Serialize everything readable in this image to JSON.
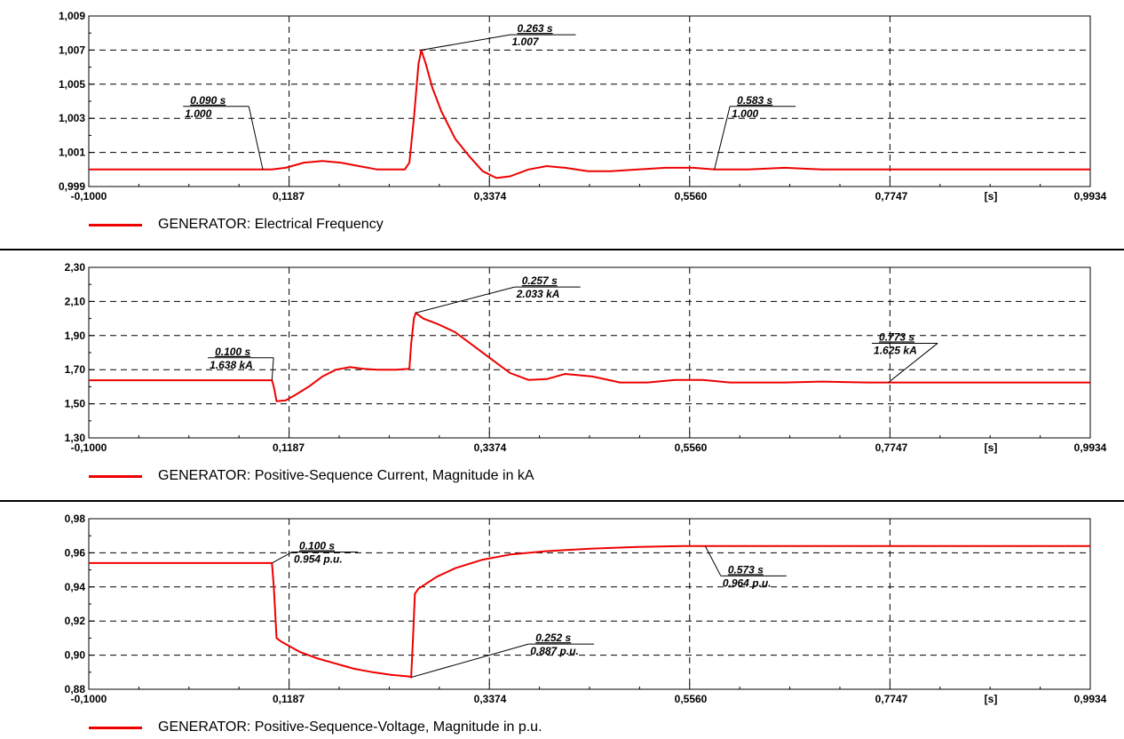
{
  "chart_data": [
    {
      "type": "line",
      "title": "",
      "xlabel": "",
      "ylabel": "",
      "xlim": [
        -0.1,
        0.9934
      ],
      "x_ticks": [
        "-0,1000",
        "0,1187",
        "0,3374",
        "0,5560",
        "0,7747",
        "[s]",
        "0,9934"
      ],
      "ylim": [
        0.999,
        1.009
      ],
      "y_ticks": [
        "1,009",
        "1,007",
        "1,005",
        "1,003",
        "1,001",
        "0,999"
      ],
      "grid": true,
      "legend": "bottom-left",
      "color": "#ee0000",
      "series": [
        {
          "name": "GENERATOR: Electrical Frequency",
          "x": [
            -0.1,
            0.1,
            0.115,
            0.135,
            0.155,
            0.175,
            0.195,
            0.215,
            0.235,
            0.245,
            0.25,
            0.255,
            0.26,
            0.263,
            0.268,
            0.275,
            0.285,
            0.3,
            0.315,
            0.33,
            0.345,
            0.36,
            0.38,
            0.4,
            0.42,
            0.445,
            0.47,
            0.5,
            0.53,
            0.56,
            0.583,
            0.62,
            0.66,
            0.7,
            0.75,
            0.8,
            0.9,
            0.9934
          ],
          "y": [
            1.0,
            1.0,
            1.0001,
            1.0004,
            1.0005,
            1.0004,
            1.0002,
            1.0,
            1.0,
            1.0,
            1.0004,
            1.003,
            1.0062,
            1.007,
            1.0062,
            1.0048,
            1.0034,
            1.0018,
            1.0008,
            0.9999,
            0.9995,
            0.9996,
            1.0,
            1.0002,
            1.0001,
            0.9999,
            0.9999,
            1.0,
            1.0001,
            1.0001,
            1.0,
            1.0,
            1.0001,
            1.0,
            1.0,
            1.0,
            1.0,
            1.0
          ]
        }
      ],
      "annotations": [
        {
          "time": "0.090 s",
          "value": "1.000",
          "x": 0.09,
          "y": 1.0,
          "label_x": 0.003,
          "label_y": 1.0037,
          "side": "left"
        },
        {
          "time": "0.263 s",
          "value": "1.007",
          "x": 0.263,
          "y": 1.007,
          "label_x": 0.36,
          "label_y": 1.0079,
          "side": "right"
        },
        {
          "time": "0.583 s",
          "value": "1.000",
          "x": 0.583,
          "y": 1.0,
          "label_x": 0.6,
          "label_y": 1.0037,
          "side": "right"
        }
      ]
    },
    {
      "type": "line",
      "title": "",
      "xlabel": "",
      "ylabel": "",
      "xlim": [
        -0.1,
        0.9934
      ],
      "x_ticks": [
        "-0,1000",
        "0,1187",
        "0,3374",
        "0,5560",
        "0,7747",
        "[s]",
        "0,9934"
      ],
      "ylim": [
        1.3,
        2.3
      ],
      "y_ticks": [
        "2,30",
        "2,10",
        "1,90",
        "1,70",
        "1,50",
        "1,30"
      ],
      "grid": true,
      "legend": "bottom-left",
      "color": "#ee0000",
      "series": [
        {
          "name": "GENERATOR: Positive-Sequence Current, Magnitude in kA",
          "x": [
            -0.1,
            0.1,
            0.102,
            0.105,
            0.115,
            0.125,
            0.14,
            0.155,
            0.17,
            0.185,
            0.2,
            0.215,
            0.235,
            0.25,
            0.252,
            0.255,
            0.257,
            0.265,
            0.28,
            0.3,
            0.32,
            0.34,
            0.36,
            0.38,
            0.4,
            0.42,
            0.45,
            0.48,
            0.51,
            0.54,
            0.57,
            0.6,
            0.63,
            0.66,
            0.7,
            0.75,
            0.773,
            0.8,
            0.9,
            0.9934
          ],
          "y": [
            1.638,
            1.638,
            1.6,
            1.515,
            1.52,
            1.55,
            1.6,
            1.66,
            1.7,
            1.715,
            1.705,
            1.7,
            1.7,
            1.705,
            1.85,
            2.0,
            2.033,
            2.0,
            1.97,
            1.92,
            1.84,
            1.76,
            1.68,
            1.64,
            1.645,
            1.675,
            1.66,
            1.625,
            1.625,
            1.64,
            1.64,
            1.625,
            1.625,
            1.625,
            1.63,
            1.625,
            1.625,
            1.625,
            1.625,
            1.625
          ]
        }
      ],
      "annotations": [
        {
          "time": "0.100 s",
          "value": "1.638 kA",
          "x": 0.1,
          "y": 1.638,
          "label_x": 0.03,
          "label_y": 1.77,
          "side": "left"
        },
        {
          "time": "0.257 s",
          "value": "2.033 kA",
          "x": 0.257,
          "y": 2.033,
          "label_x": 0.365,
          "label_y": 2.185,
          "side": "right"
        },
        {
          "time": "0.773 s",
          "value": "1.625 kA",
          "x": 0.773,
          "y": 1.625,
          "label_x": 0.755,
          "label_y": 1.855,
          "side": "left"
        }
      ]
    },
    {
      "type": "line",
      "title": "",
      "xlabel": "",
      "ylabel": "",
      "xlim": [
        -0.1,
        0.9934
      ],
      "x_ticks": [
        "-0,1000",
        "0,1187",
        "0,3374",
        "0,5560",
        "0,7747",
        "[s]",
        "0,9934"
      ],
      "ylim": [
        0.88,
        0.98
      ],
      "y_ticks": [
        "0,98",
        "0,96",
        "0,94",
        "0,92",
        "0,90",
        "0,88"
      ],
      "grid": true,
      "legend": "bottom-left",
      "color": "#ee0000",
      "series": [
        {
          "name": "GENERATOR: Positive-Sequence-Voltage, Magnitude in p.u.",
          "x": [
            -0.1,
            0.1,
            0.102,
            0.105,
            0.11,
            0.13,
            0.15,
            0.17,
            0.19,
            0.21,
            0.23,
            0.25,
            0.252,
            0.254,
            0.256,
            0.26,
            0.28,
            0.3,
            0.33,
            0.36,
            0.4,
            0.45,
            0.5,
            0.55,
            0.573,
            0.6,
            0.7,
            0.8,
            0.9,
            0.9934
          ],
          "y": [
            0.954,
            0.954,
            0.94,
            0.91,
            0.908,
            0.902,
            0.898,
            0.895,
            0.892,
            0.89,
            0.8885,
            0.8875,
            0.887,
            0.91,
            0.936,
            0.939,
            0.946,
            0.951,
            0.956,
            0.959,
            0.961,
            0.9625,
            0.9635,
            0.964,
            0.964,
            0.964,
            0.964,
            0.964,
            0.964,
            0.964
          ]
        }
      ],
      "annotations": [
        {
          "time": "0.100 s",
          "value": "0.954 p.u.",
          "x": 0.1,
          "y": 0.954,
          "label_x": 0.122,
          "label_y": 0.9605,
          "side": "right"
        },
        {
          "time": "0.252 s",
          "value": "0.887 p.u.",
          "x": 0.252,
          "y": 0.887,
          "label_x": 0.38,
          "label_y": 0.9065,
          "side": "right"
        },
        {
          "time": "0.573 s",
          "value": "0.964 p.u.",
          "x": 0.573,
          "y": 0.964,
          "label_x": 0.59,
          "label_y": 0.9465,
          "side": "right"
        }
      ]
    }
  ]
}
